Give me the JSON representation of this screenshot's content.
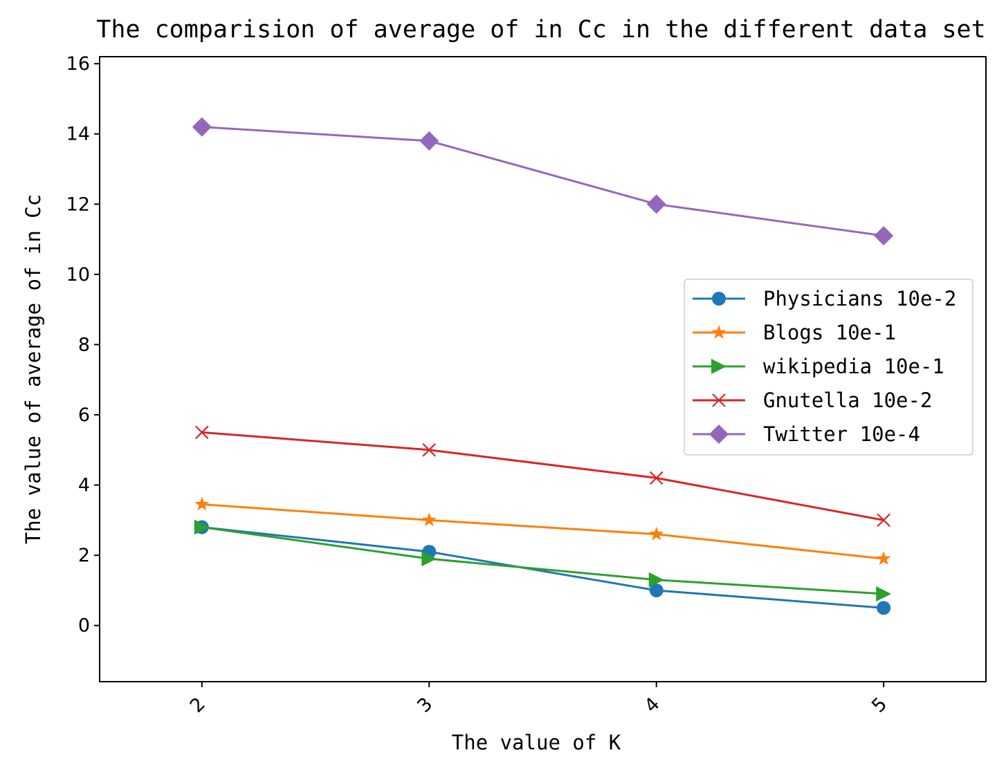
{
  "chart_data": {
    "type": "line",
    "title": "The comparision of average of in Cc in the different data set",
    "xlabel": "The value of K",
    "ylabel": "The value of average of in Cc",
    "x": [
      2,
      3,
      4,
      5
    ],
    "xticks": [
      "2",
      "3",
      "4",
      "5"
    ],
    "xlim": [
      1.55,
      5.45
    ],
    "ylim": [
      -1.6,
      16.2
    ],
    "yticks": [
      0,
      2,
      4,
      6,
      8,
      10,
      12,
      14,
      16
    ],
    "grid": false,
    "legend_position": "center-right",
    "series": [
      {
        "name": "Physicians 10e-2",
        "color": "#1f77b4",
        "marker": "circle",
        "values": [
          2.8,
          2.1,
          1.0,
          0.5
        ]
      },
      {
        "name": "Blogs 10e-1",
        "color": "#ff7f0e",
        "marker": "star",
        "values": [
          3.45,
          3.0,
          2.6,
          1.9
        ]
      },
      {
        "name": "wikipedia 10e-1",
        "color": "#2ca02c",
        "marker": "triangle-right",
        "values": [
          2.8,
          1.9,
          1.3,
          0.9
        ]
      },
      {
        "name": "Gnutella 10e-2",
        "color": "#d62728",
        "marker": "x",
        "values": [
          5.5,
          5.0,
          4.2,
          3.0
        ]
      },
      {
        "name": "Twitter 10e-4",
        "color": "#9467bd",
        "marker": "diamond",
        "values": [
          14.2,
          13.8,
          12.0,
          11.1
        ]
      }
    ]
  }
}
